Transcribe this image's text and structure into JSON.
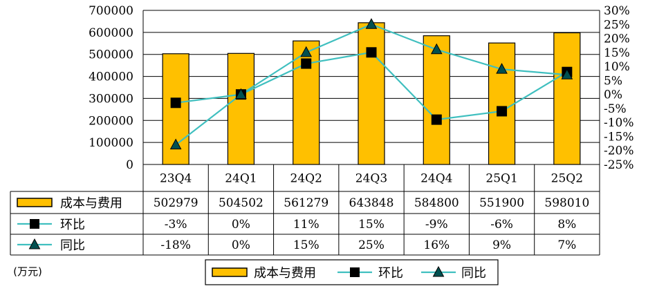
{
  "chart_data": {
    "type": "bar",
    "categories": [
      "23Q4",
      "24Q1",
      "24Q2",
      "24Q3",
      "24Q4",
      "25Q1",
      "25Q2"
    ],
    "series": [
      {
        "name": "成本与费用",
        "type": "bar",
        "axis": "left",
        "values": [
          502979,
          504502,
          561279,
          643848,
          584800,
          551900,
          598010
        ],
        "table_labels": [
          "502979",
          "504502",
          "561279",
          "643848",
          "584800",
          "551900",
          "598010"
        ],
        "color": "#FFC000"
      },
      {
        "name": "环比",
        "type": "line",
        "axis": "right",
        "marker": "square",
        "values": [
          -3,
          0,
          11,
          15,
          -9,
          -6,
          8
        ],
        "table_labels": [
          "-3%",
          "0%",
          "11%",
          "15%",
          "-9%",
          "-6%",
          "8%"
        ],
        "color": "#3FBFBF"
      },
      {
        "name": "同比",
        "type": "line",
        "axis": "right",
        "marker": "triangle",
        "values": [
          -18,
          0,
          15,
          25,
          16,
          9,
          7
        ],
        "table_labels": [
          "-18%",
          "0%",
          "15%",
          "25%",
          "16%",
          "9%",
          "7%"
        ],
        "color": "#3FBFBF"
      }
    ],
    "left_axis": {
      "min": 0,
      "max": 700000,
      "step": 100000,
      "ticks": [
        "0",
        "100000",
        "200000",
        "300000",
        "400000",
        "500000",
        "600000",
        "700000"
      ]
    },
    "right_axis": {
      "min": -25,
      "max": 30,
      "step": 5,
      "ticks": [
        "-25%",
        "-20%",
        "-15%",
        "-10%",
        "-5%",
        "0%",
        "5%",
        "10%",
        "15%",
        "20%",
        "25%",
        "30%"
      ]
    },
    "unit_label": "(万元)",
    "grid": true,
    "data_table": true,
    "legend_position": "bottom"
  }
}
